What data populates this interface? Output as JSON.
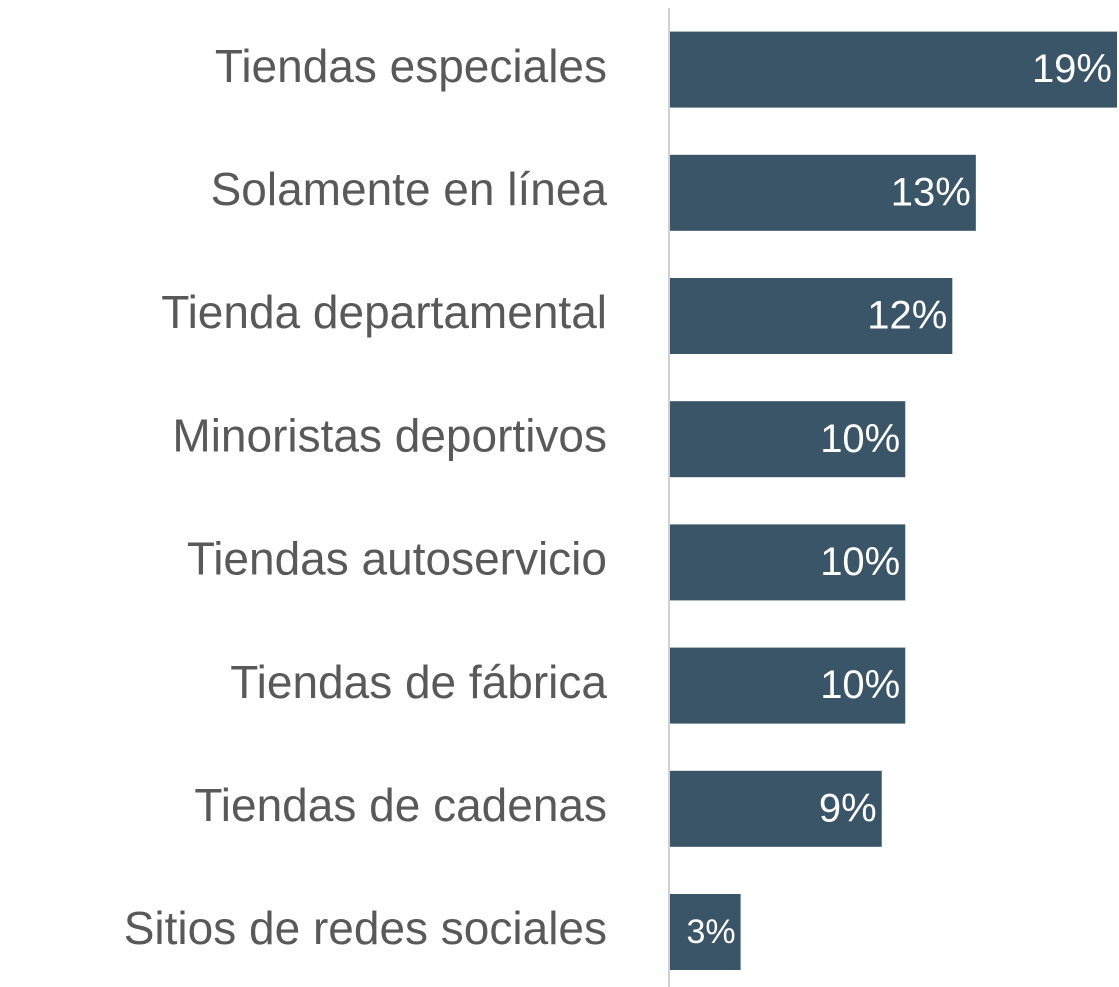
{
  "chart_data": {
    "type": "hbar",
    "categories": [
      "Tiendas especiales",
      "Solamente en línea",
      "Tienda departamental",
      "Minoristas deportivos",
      "Tiendas autoservicio",
      "Tiendas de fábrica",
      "Tiendas de cadenas",
      "Sitios de redes sociales"
    ],
    "values": [
      19,
      13,
      12,
      10,
      10,
      10,
      9,
      3
    ],
    "value_labels": [
      "19%",
      "13%",
      "12%",
      "10%",
      "10%",
      "10%",
      "9%",
      "3%"
    ],
    "color": "#3b5568"
  }
}
